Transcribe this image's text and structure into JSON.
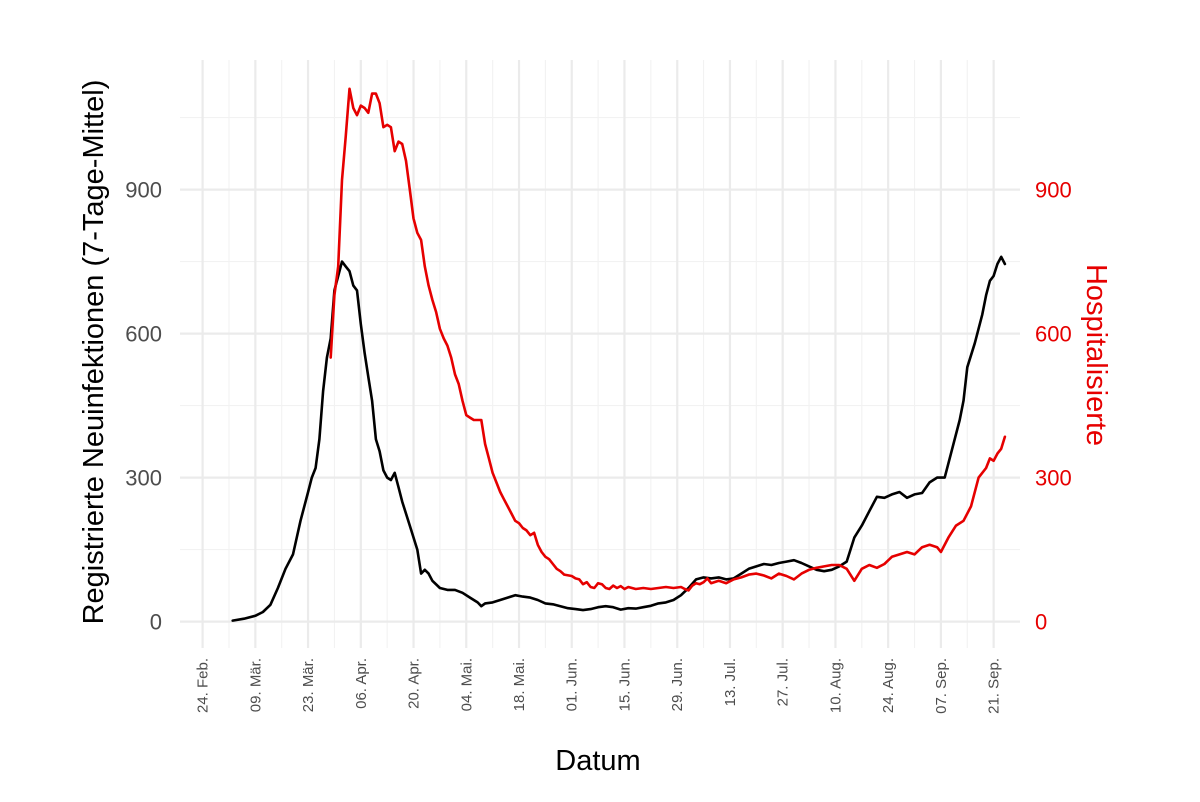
{
  "chart_data": {
    "type": "line",
    "title": "",
    "xlabel": "Datum",
    "ylabel": "Registrierte Neuinfektionen (7-Tage-Mittel)",
    "y2label": "Hospitalisierte",
    "x_tick_labels": [
      "24. Feb.",
      "09. Mär.",
      "23. Mär.",
      "06. Apr.",
      "20. Apr.",
      "04. Mai.",
      "18. Mai.",
      "01. Jun.",
      "15. Jun.",
      "29. Jun.",
      "13. Jul.",
      "27. Jul.",
      "10. Aug.",
      "24. Aug.",
      "07. Sep.",
      "21. Sep."
    ],
    "x_tick_dates": [
      "2020-02-24",
      "2020-03-09",
      "2020-03-23",
      "2020-04-06",
      "2020-04-20",
      "2020-05-04",
      "2020-05-18",
      "2020-06-01",
      "2020-06-15",
      "2020-06-29",
      "2020-07-13",
      "2020-07-27",
      "2020-08-10",
      "2020-08-24",
      "2020-09-07",
      "2020-09-21"
    ],
    "xlim": [
      "2020-02-18",
      "2020-09-28"
    ],
    "ylim": [
      -55,
      1170
    ],
    "y_ticks": [
      0,
      300,
      600,
      900
    ],
    "y2_ticks": [
      0,
      300,
      600,
      900
    ],
    "grid": true,
    "colors": {
      "infections": "#000000",
      "hospitalized": "#e60000",
      "grid": "#ebebeb",
      "right_axis": "#e60000"
    },
    "series": [
      {
        "axis": "left",
        "color": "#000000",
        "points": [
          [
            "2020-03-03",
            2
          ],
          [
            "2020-03-06",
            6
          ],
          [
            "2020-03-09",
            12
          ],
          [
            "2020-03-11",
            20
          ],
          [
            "2020-03-13",
            35
          ],
          [
            "2020-03-15",
            70
          ],
          [
            "2020-03-17",
            110
          ],
          [
            "2020-03-19",
            140
          ],
          [
            "2020-03-21",
            210
          ],
          [
            "2020-03-23",
            270
          ],
          [
            "2020-03-24",
            300
          ],
          [
            "2020-03-25",
            320
          ],
          [
            "2020-03-26",
            380
          ],
          [
            "2020-03-27",
            480
          ],
          [
            "2020-03-28",
            550
          ],
          [
            "2020-03-29",
            590
          ],
          [
            "2020-03-30",
            690
          ],
          [
            "2020-03-31",
            720
          ],
          [
            "2020-04-01",
            750
          ],
          [
            "2020-04-02",
            740
          ],
          [
            "2020-04-03",
            730
          ],
          [
            "2020-04-04",
            700
          ],
          [
            "2020-04-05",
            690
          ],
          [
            "2020-04-06",
            620
          ],
          [
            "2020-04-07",
            560
          ],
          [
            "2020-04-08",
            510
          ],
          [
            "2020-04-09",
            460
          ],
          [
            "2020-04-10",
            380
          ],
          [
            "2020-04-11",
            355
          ],
          [
            "2020-04-12",
            315
          ],
          [
            "2020-04-13",
            300
          ],
          [
            "2020-04-14",
            295
          ],
          [
            "2020-04-15",
            310
          ],
          [
            "2020-04-16",
            280
          ],
          [
            "2020-04-17",
            250
          ],
          [
            "2020-04-19",
            200
          ],
          [
            "2020-04-21",
            150
          ],
          [
            "2020-04-22",
            100
          ],
          [
            "2020-04-23",
            108
          ],
          [
            "2020-04-24",
            100
          ],
          [
            "2020-04-25",
            85
          ],
          [
            "2020-04-27",
            70
          ],
          [
            "2020-04-29",
            66
          ],
          [
            "2020-05-01",
            66
          ],
          [
            "2020-05-03",
            60
          ],
          [
            "2020-05-05",
            50
          ],
          [
            "2020-05-07",
            40
          ],
          [
            "2020-05-08",
            32
          ],
          [
            "2020-05-09",
            38
          ],
          [
            "2020-05-11",
            40
          ],
          [
            "2020-05-13",
            45
          ],
          [
            "2020-05-15",
            50
          ],
          [
            "2020-05-17",
            55
          ],
          [
            "2020-05-19",
            52
          ],
          [
            "2020-05-21",
            50
          ],
          [
            "2020-05-23",
            45
          ],
          [
            "2020-05-25",
            38
          ],
          [
            "2020-05-27",
            36
          ],
          [
            "2020-05-29",
            32
          ],
          [
            "2020-05-31",
            28
          ],
          [
            "2020-06-02",
            26
          ],
          [
            "2020-06-04",
            24
          ],
          [
            "2020-06-06",
            26
          ],
          [
            "2020-06-08",
            30
          ],
          [
            "2020-06-10",
            32
          ],
          [
            "2020-06-12",
            30
          ],
          [
            "2020-06-14",
            25
          ],
          [
            "2020-06-16",
            28
          ],
          [
            "2020-06-18",
            27
          ],
          [
            "2020-06-20",
            30
          ],
          [
            "2020-06-22",
            33
          ],
          [
            "2020-06-24",
            38
          ],
          [
            "2020-06-26",
            40
          ],
          [
            "2020-06-28",
            45
          ],
          [
            "2020-06-30",
            55
          ],
          [
            "2020-07-02",
            70
          ],
          [
            "2020-07-04",
            88
          ],
          [
            "2020-07-06",
            92
          ],
          [
            "2020-07-08",
            90
          ],
          [
            "2020-07-10",
            92
          ],
          [
            "2020-07-12",
            88
          ],
          [
            "2020-07-14",
            90
          ],
          [
            "2020-07-16",
            100
          ],
          [
            "2020-07-18",
            110
          ],
          [
            "2020-07-20",
            115
          ],
          [
            "2020-07-22",
            120
          ],
          [
            "2020-07-24",
            118
          ],
          [
            "2020-07-26",
            122
          ],
          [
            "2020-07-28",
            125
          ],
          [
            "2020-07-30",
            128
          ],
          [
            "2020-08-01",
            122
          ],
          [
            "2020-08-03",
            115
          ],
          [
            "2020-08-05",
            108
          ],
          [
            "2020-08-07",
            105
          ],
          [
            "2020-08-09",
            108
          ],
          [
            "2020-08-11",
            115
          ],
          [
            "2020-08-13",
            125
          ],
          [
            "2020-08-15",
            175
          ],
          [
            "2020-08-17",
            200
          ],
          [
            "2020-08-19",
            230
          ],
          [
            "2020-08-21",
            260
          ],
          [
            "2020-08-23",
            258
          ],
          [
            "2020-08-25",
            265
          ],
          [
            "2020-08-27",
            270
          ],
          [
            "2020-08-29",
            258
          ],
          [
            "2020-08-31",
            265
          ],
          [
            "2020-09-02",
            268
          ],
          [
            "2020-09-04",
            290
          ],
          [
            "2020-09-06",
            300
          ],
          [
            "2020-09-08",
            300
          ],
          [
            "2020-09-10",
            360
          ],
          [
            "2020-09-12",
            420
          ],
          [
            "2020-09-13",
            460
          ],
          [
            "2020-09-14",
            530
          ],
          [
            "2020-09-16",
            580
          ],
          [
            "2020-09-18",
            640
          ],
          [
            "2020-09-19",
            680
          ],
          [
            "2020-09-20",
            710
          ],
          [
            "2020-09-21",
            720
          ],
          [
            "2020-09-22",
            745
          ],
          [
            "2020-09-23",
            760
          ],
          [
            "2020-09-24",
            745
          ]
        ]
      },
      {
        "axis": "right",
        "color": "#e60000",
        "points": [
          [
            "2020-03-29",
            550
          ],
          [
            "2020-03-30",
            680
          ],
          [
            "2020-03-31",
            740
          ],
          [
            "2020-04-01",
            920
          ],
          [
            "2020-04-02",
            1010
          ],
          [
            "2020-04-03",
            1110
          ],
          [
            "2020-04-04",
            1070
          ],
          [
            "2020-04-05",
            1055
          ],
          [
            "2020-04-06",
            1075
          ],
          [
            "2020-04-07",
            1070
          ],
          [
            "2020-04-08",
            1060
          ],
          [
            "2020-04-09",
            1100
          ],
          [
            "2020-04-10",
            1100
          ],
          [
            "2020-04-11",
            1080
          ],
          [
            "2020-04-12",
            1030
          ],
          [
            "2020-04-13",
            1035
          ],
          [
            "2020-04-14",
            1030
          ],
          [
            "2020-04-15",
            980
          ],
          [
            "2020-04-16",
            1000
          ],
          [
            "2020-04-17",
            995
          ],
          [
            "2020-04-18",
            960
          ],
          [
            "2020-04-19",
            900
          ],
          [
            "2020-04-20",
            840
          ],
          [
            "2020-04-21",
            810
          ],
          [
            "2020-04-22",
            795
          ],
          [
            "2020-04-23",
            740
          ],
          [
            "2020-04-24",
            700
          ],
          [
            "2020-04-25",
            670
          ],
          [
            "2020-04-26",
            645
          ],
          [
            "2020-04-27",
            610
          ],
          [
            "2020-04-28",
            590
          ],
          [
            "2020-04-29",
            575
          ],
          [
            "2020-04-30",
            550
          ],
          [
            "2020-05-01",
            515
          ],
          [
            "2020-05-02",
            495
          ],
          [
            "2020-05-03",
            460
          ],
          [
            "2020-05-04",
            430
          ],
          [
            "2020-05-05",
            425
          ],
          [
            "2020-05-06",
            420
          ],
          [
            "2020-05-07",
            420
          ],
          [
            "2020-05-08",
            420
          ],
          [
            "2020-05-09",
            370
          ],
          [
            "2020-05-10",
            340
          ],
          [
            "2020-05-11",
            310
          ],
          [
            "2020-05-12",
            290
          ],
          [
            "2020-05-13",
            270
          ],
          [
            "2020-05-14",
            255
          ],
          [
            "2020-05-15",
            240
          ],
          [
            "2020-05-16",
            225
          ],
          [
            "2020-05-17",
            210
          ],
          [
            "2020-05-18",
            205
          ],
          [
            "2020-05-19",
            195
          ],
          [
            "2020-05-20",
            190
          ],
          [
            "2020-05-21",
            180
          ],
          [
            "2020-05-22",
            185
          ],
          [
            "2020-05-23",
            160
          ],
          [
            "2020-05-24",
            145
          ],
          [
            "2020-05-25",
            135
          ],
          [
            "2020-05-26",
            130
          ],
          [
            "2020-05-27",
            120
          ],
          [
            "2020-05-28",
            110
          ],
          [
            "2020-05-29",
            105
          ],
          [
            "2020-05-30",
            98
          ],
          [
            "2020-06-01",
            95
          ],
          [
            "2020-06-02",
            90
          ],
          [
            "2020-06-03",
            88
          ],
          [
            "2020-06-04",
            78
          ],
          [
            "2020-06-05",
            82
          ],
          [
            "2020-06-06",
            72
          ],
          [
            "2020-06-07",
            70
          ],
          [
            "2020-06-08",
            80
          ],
          [
            "2020-06-09",
            78
          ],
          [
            "2020-06-10",
            70
          ],
          [
            "2020-06-11",
            68
          ],
          [
            "2020-06-12",
            75
          ],
          [
            "2020-06-13",
            70
          ],
          [
            "2020-06-14",
            74
          ],
          [
            "2020-06-15",
            68
          ],
          [
            "2020-06-16",
            72
          ],
          [
            "2020-06-17",
            70
          ],
          [
            "2020-06-18",
            68
          ],
          [
            "2020-06-20",
            70
          ],
          [
            "2020-06-22",
            68
          ],
          [
            "2020-06-24",
            70
          ],
          [
            "2020-06-26",
            72
          ],
          [
            "2020-06-28",
            70
          ],
          [
            "2020-06-30",
            72
          ],
          [
            "2020-07-01",
            68
          ],
          [
            "2020-07-02",
            65
          ],
          [
            "2020-07-03",
            75
          ],
          [
            "2020-07-04",
            80
          ],
          [
            "2020-07-05",
            78
          ],
          [
            "2020-07-06",
            82
          ],
          [
            "2020-07-07",
            90
          ],
          [
            "2020-07-08",
            80
          ],
          [
            "2020-07-10",
            85
          ],
          [
            "2020-07-12",
            80
          ],
          [
            "2020-07-14",
            88
          ],
          [
            "2020-07-16",
            92
          ],
          [
            "2020-07-18",
            98
          ],
          [
            "2020-07-20",
            100
          ],
          [
            "2020-07-22",
            96
          ],
          [
            "2020-07-24",
            90
          ],
          [
            "2020-07-26",
            100
          ],
          [
            "2020-07-28",
            95
          ],
          [
            "2020-07-30",
            88
          ],
          [
            "2020-08-01",
            100
          ],
          [
            "2020-08-03",
            108
          ],
          [
            "2020-08-05",
            112
          ],
          [
            "2020-08-07",
            115
          ],
          [
            "2020-08-09",
            118
          ],
          [
            "2020-08-11",
            118
          ],
          [
            "2020-08-13",
            110
          ],
          [
            "2020-08-15",
            85
          ],
          [
            "2020-08-17",
            110
          ],
          [
            "2020-08-19",
            118
          ],
          [
            "2020-08-21",
            112
          ],
          [
            "2020-08-23",
            120
          ],
          [
            "2020-08-25",
            135
          ],
          [
            "2020-08-27",
            140
          ],
          [
            "2020-08-29",
            145
          ],
          [
            "2020-08-31",
            140
          ],
          [
            "2020-09-02",
            155
          ],
          [
            "2020-09-04",
            160
          ],
          [
            "2020-09-06",
            155
          ],
          [
            "2020-09-07",
            145
          ],
          [
            "2020-09-09",
            175
          ],
          [
            "2020-09-11",
            200
          ],
          [
            "2020-09-13",
            210
          ],
          [
            "2020-09-15",
            240
          ],
          [
            "2020-09-17",
            300
          ],
          [
            "2020-09-19",
            320
          ],
          [
            "2020-09-20",
            340
          ],
          [
            "2020-09-21",
            335
          ],
          [
            "2020-09-22",
            350
          ],
          [
            "2020-09-23",
            360
          ],
          [
            "2020-09-24",
            385
          ]
        ]
      }
    ]
  }
}
